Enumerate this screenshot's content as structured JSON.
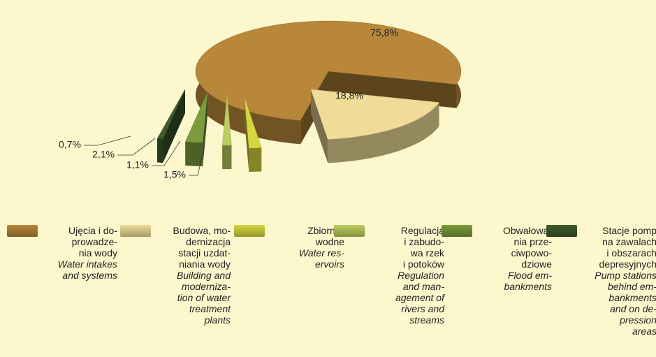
{
  "chart_data": {
    "type": "pie",
    "categories": [
      "Ujęcia i do-\nprowadze-\nnia wody",
      "Budowa, mo-\ndernizacja\nstacji uzdat-\nniania wody",
      "Zbiorniki\nwodne",
      "Regulacja\ni zabudo-\nwa rzek\ni potoków",
      "Obwałowa-\nnia prze-\nciwpowo-\ndziowe",
      "Stacje pomp\nna zawalach\ni obszarach\ndepresyjnych"
    ],
    "categories_en": [
      "Water intakes\nand systems",
      "Building and\nmoderniza-\ntion of water\ntreatment\nplants",
      "Water res-\nervoirs",
      "Regulation\nand man-\nagement of\nrivers and\nstreams",
      "Flood em-\nbankments",
      "Pump stations\nbehind em-\nbankments\nand on de-\npression\nareas"
    ],
    "values": [
      75.8,
      18.8,
      1.5,
      1.1,
      2.1,
      0.7
    ],
    "value_labels": [
      "75,8%",
      "18,8%",
      "1,5%",
      "1,1%",
      "2,1%",
      "0,7%"
    ],
    "colors": [
      "#b8873a",
      "#efdc98",
      "#d6d640",
      "#bccf5e",
      "#7c9b3c",
      "#3e5b2b"
    ]
  }
}
